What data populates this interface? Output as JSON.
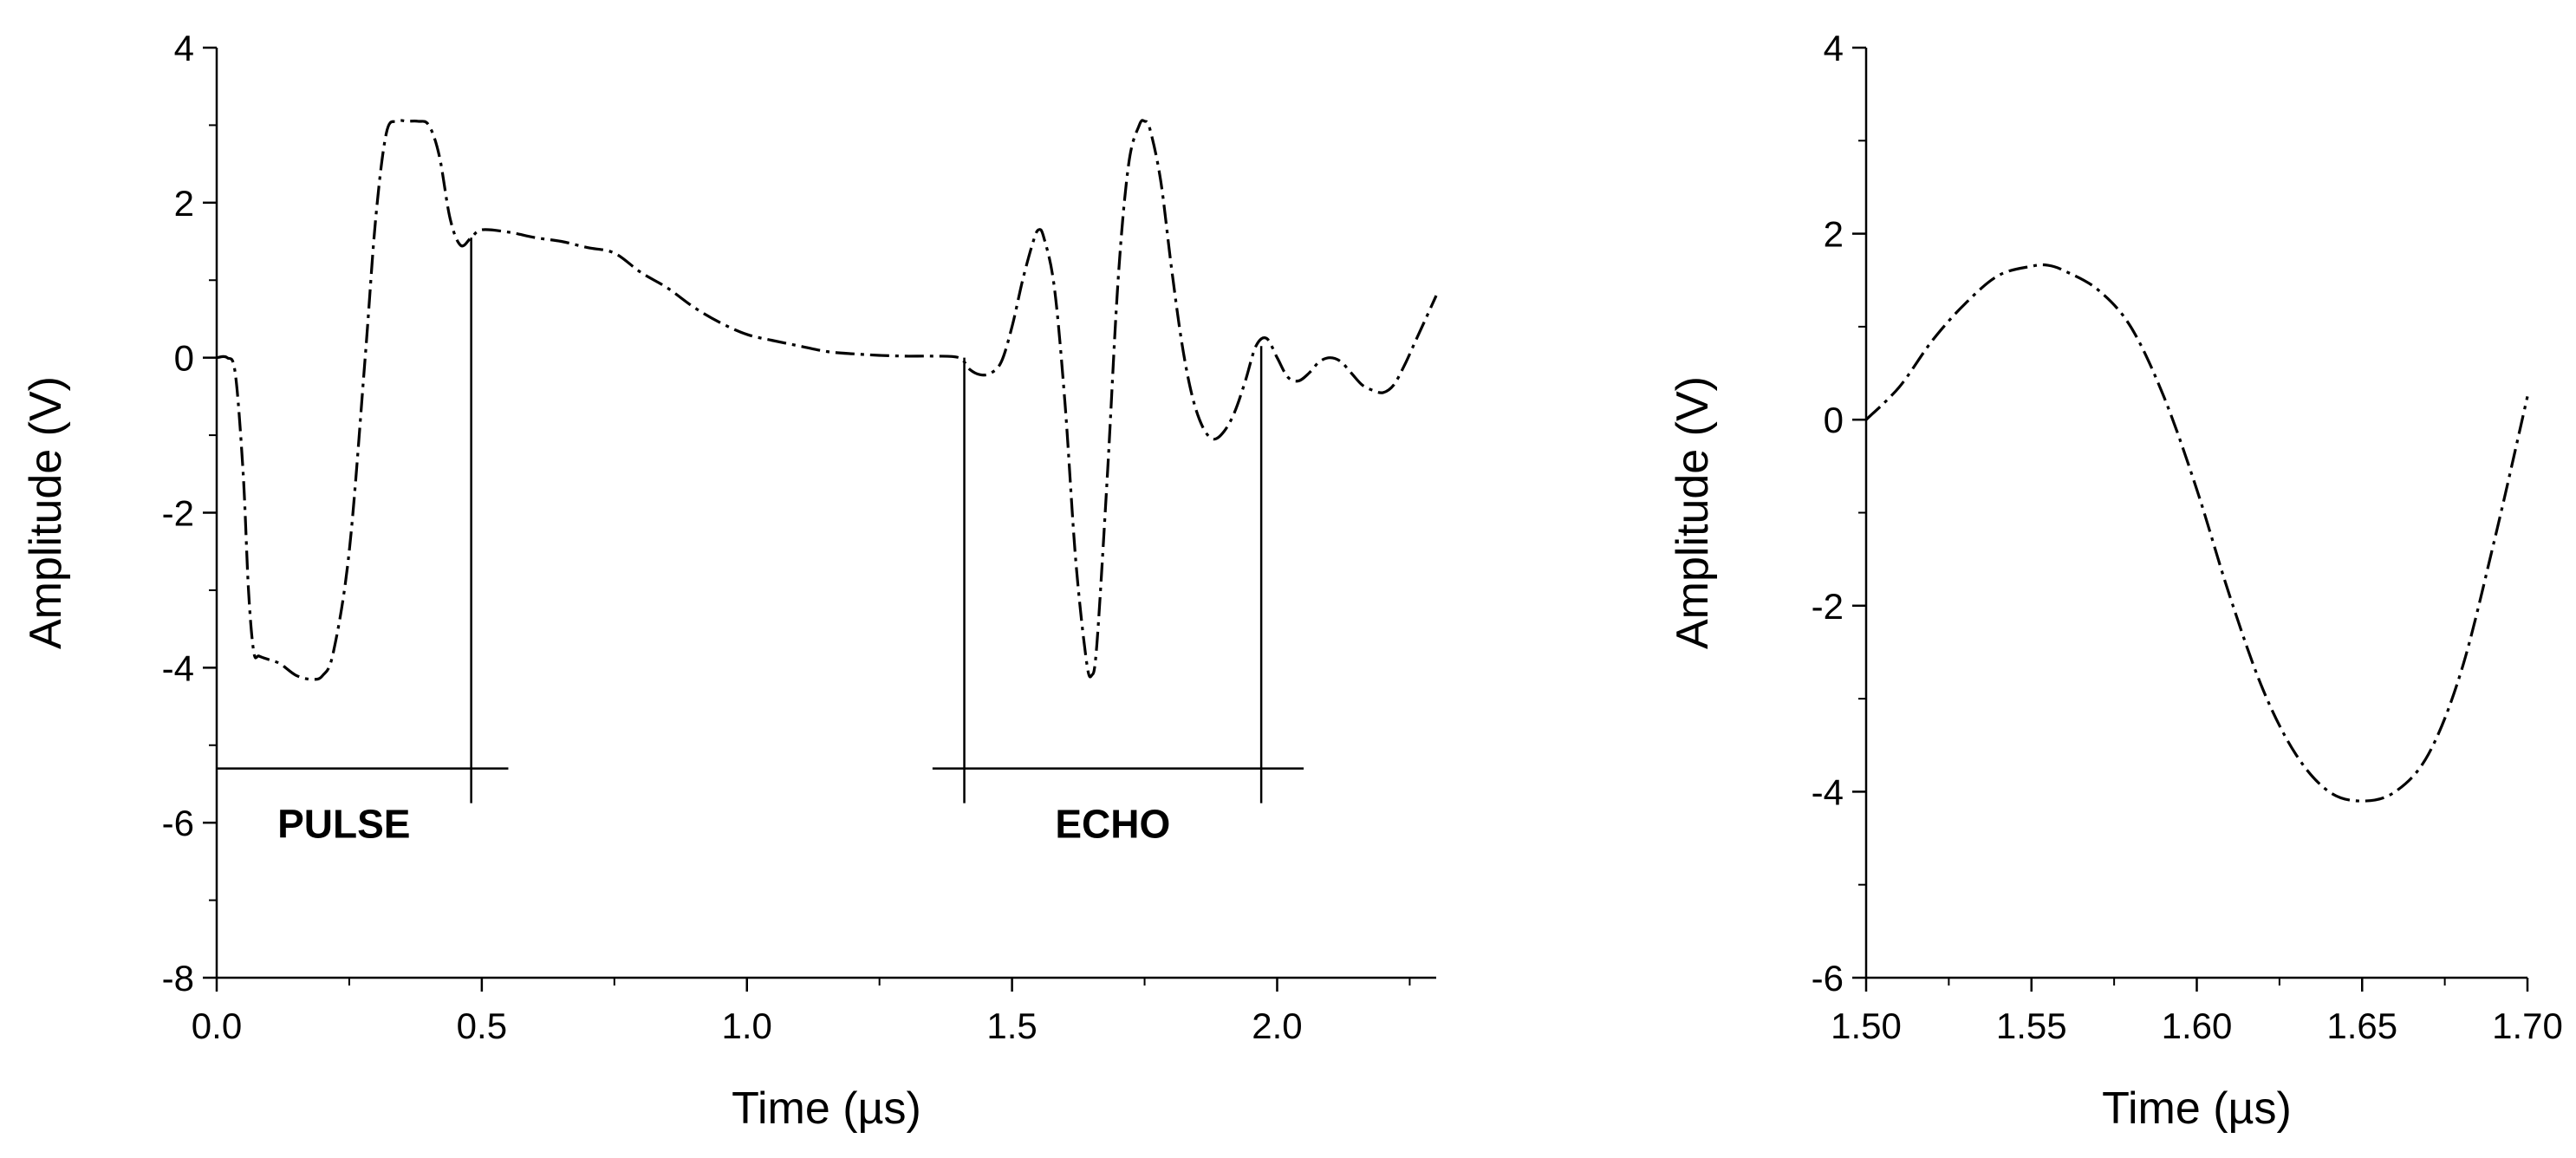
{
  "chart_data": [
    {
      "type": "line",
      "xlabel": "Time (µs)",
      "ylabel": "Amplitude (V)",
      "xlim": [
        0,
        2.3
      ],
      "ylim": [
        -8,
        4
      ],
      "x_ticks": [
        0.0,
        0.5,
        1.0,
        1.5,
        2.0
      ],
      "x_tick_labels": [
        "0.0",
        "0.5",
        "1.0",
        "1.5",
        "2.0"
      ],
      "y_ticks": [
        -8,
        -6,
        -4,
        -2,
        0,
        2,
        4
      ],
      "y_tick_labels": [
        "-8",
        "-6",
        "-4",
        "-2",
        "0",
        "2",
        "4"
      ],
      "line_style": "dash-dot",
      "series": [
        {
          "x": [
            0.0,
            0.02,
            0.035,
            0.05,
            0.06,
            0.07,
            0.08,
            0.1,
            0.12,
            0.15,
            0.18,
            0.2,
            0.22,
            0.25,
            0.28,
            0.3,
            0.32,
            0.34,
            0.36,
            0.38,
            0.4,
            0.42,
            0.44,
            0.46,
            0.48,
            0.5,
            0.55,
            0.6,
            0.65,
            0.7,
            0.75,
            0.8,
            0.85,
            0.9,
            0.95,
            1.0,
            1.05,
            1.1,
            1.15,
            1.2,
            1.25,
            1.3,
            1.35,
            1.4,
            1.42,
            1.44,
            1.46,
            1.48,
            1.5,
            1.52,
            1.54,
            1.55,
            1.56,
            1.58,
            1.6,
            1.62,
            1.64,
            1.65,
            1.66,
            1.68,
            1.7,
            1.72,
            1.74,
            1.75,
            1.76,
            1.78,
            1.8,
            1.82,
            1.84,
            1.86,
            1.88,
            1.9,
            1.92,
            1.94,
            1.96,
            1.98,
            2.0,
            2.02,
            2.04,
            2.06,
            2.08,
            2.1,
            2.12,
            2.14,
            2.16,
            2.18,
            2.2,
            2.22,
            2.24,
            2.26,
            2.28,
            2.3
          ],
          "y": [
            0.0,
            0.0,
            -0.2,
            -1.5,
            -3.0,
            -3.8,
            -3.85,
            -3.9,
            -3.95,
            -4.1,
            -4.15,
            -4.1,
            -3.8,
            -2.5,
            0.0,
            1.8,
            2.9,
            3.05,
            3.05,
            3.05,
            3.0,
            2.6,
            1.8,
            1.45,
            1.55,
            1.65,
            1.62,
            1.55,
            1.5,
            1.42,
            1.35,
            1.1,
            0.9,
            0.65,
            0.45,
            0.3,
            0.22,
            0.15,
            0.08,
            0.05,
            0.03,
            0.02,
            0.02,
            0.0,
            -0.15,
            -0.22,
            -0.2,
            -0.05,
            0.4,
            1.0,
            1.5,
            1.65,
            1.55,
            0.9,
            -0.6,
            -2.6,
            -3.9,
            -4.1,
            -3.7,
            -1.5,
            1.0,
            2.5,
            3.0,
            3.05,
            2.95,
            2.3,
            1.2,
            0.2,
            -0.5,
            -0.9,
            -1.05,
            -0.95,
            -0.7,
            -0.3,
            0.15,
            0.25,
            0.0,
            -0.25,
            -0.3,
            -0.2,
            -0.05,
            0.0,
            -0.05,
            -0.2,
            -0.35,
            -0.42,
            -0.45,
            -0.35,
            -0.1,
            0.2,
            0.5,
            0.8
          ]
        }
      ],
      "annotations": [
        {
          "text": "PULSE",
          "x_start": 0.0,
          "x_end": 0.55,
          "cursor_x": 0.48,
          "y_level": -5.3
        },
        {
          "text": "ECHO",
          "x_start": 1.35,
          "x_end": 2.05,
          "cursor_x": [
            1.41,
            1.97
          ],
          "y_level": -5.3
        }
      ]
    },
    {
      "type": "line",
      "xlabel": "Time (µs)",
      "ylabel": "Amplitude (V)",
      "xlim": [
        1.5,
        1.7
      ],
      "ylim": [
        -6,
        4
      ],
      "x_ticks": [
        1.5,
        1.55,
        1.6,
        1.65,
        1.7
      ],
      "x_tick_labels": [
        "1.50",
        "1.55",
        "1.60",
        "1.65",
        "1.70"
      ],
      "y_ticks": [
        -6,
        -4,
        -2,
        0,
        2,
        4
      ],
      "y_tick_labels": [
        "-6",
        "-4",
        "-2",
        "0",
        "2",
        "4"
      ],
      "line_style": "dash-dot",
      "series": [
        {
          "x": [
            1.5,
            1.51,
            1.52,
            1.53,
            1.54,
            1.55,
            1.555,
            1.56,
            1.57,
            1.58,
            1.59,
            1.6,
            1.61,
            1.62,
            1.63,
            1.64,
            1.65,
            1.66,
            1.67,
            1.68,
            1.69,
            1.7
          ],
          "y": [
            0.0,
            0.35,
            0.85,
            1.25,
            1.55,
            1.65,
            1.66,
            1.6,
            1.4,
            1.0,
            0.25,
            -0.75,
            -1.9,
            -2.9,
            -3.6,
            -4.0,
            -4.1,
            -4.0,
            -3.6,
            -2.7,
            -1.3,
            0.25
          ]
        }
      ]
    }
  ]
}
